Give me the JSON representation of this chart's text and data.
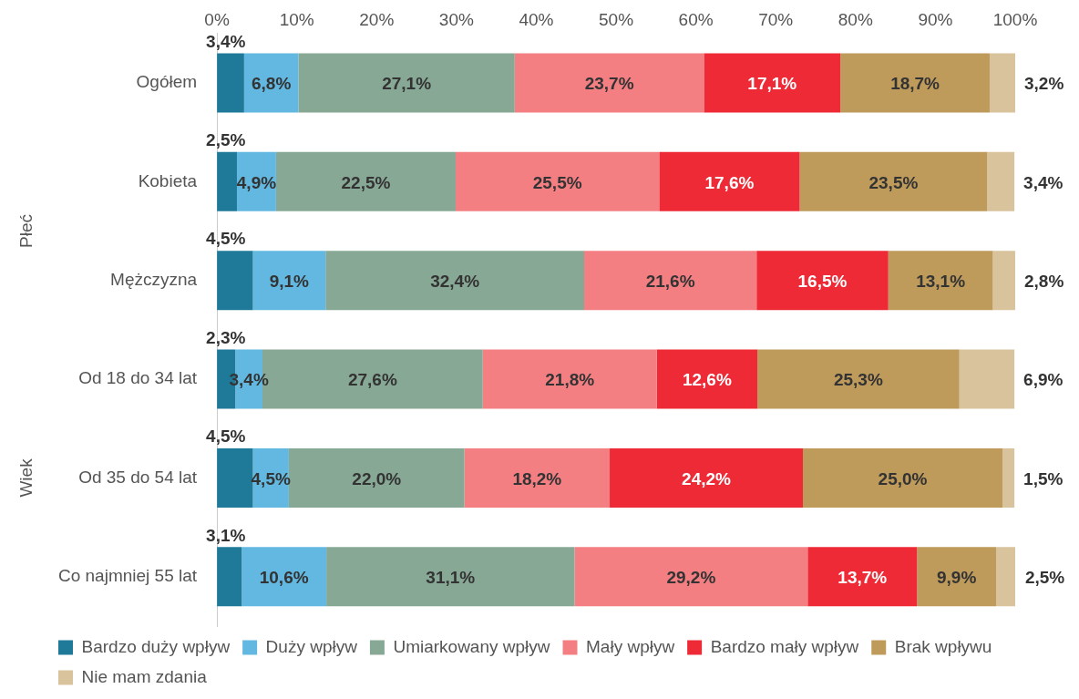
{
  "chart_data": {
    "type": "bar",
    "orientation": "horizontal",
    "stacked": true,
    "categories": [
      "Ogółem",
      "Kobieta",
      "Mężczyzna",
      "Od 18 do 34 lat",
      "Od 35 do 54 lat",
      "Co najmniej 55 lat"
    ],
    "series": [
      {
        "name": "Bardzo duży wpływ",
        "color": "#1f7a99",
        "values": [
          3.4,
          2.5,
          4.5,
          2.3,
          4.5,
          3.1
        ],
        "value_labels": [
          "3,4%",
          "2,5%",
          "4,5%",
          "2,3%",
          "4,5%",
          "3,1%"
        ]
      },
      {
        "name": "Duży wpływ",
        "color": "#62b8e0",
        "values": [
          6.8,
          4.9,
          9.1,
          3.4,
          4.5,
          10.6
        ],
        "value_labels": [
          "6,8%",
          "4,9%",
          "9,1%",
          "3,4%",
          "4,5%",
          "10,6%"
        ]
      },
      {
        "name": "Umiarkowany wpływ",
        "color": "#88a896",
        "values": [
          27.1,
          22.5,
          32.4,
          27.6,
          22.0,
          31.1
        ],
        "value_labels": [
          "27,1%",
          "22,5%",
          "32,4%",
          "27,6%",
          "22,0%",
          "31,1%"
        ]
      },
      {
        "name": "Mały wpływ",
        "color": "#f47f83",
        "values": [
          23.7,
          25.5,
          21.6,
          21.8,
          18.2,
          29.2
        ],
        "value_labels": [
          "23,7%",
          "25,5%",
          "21,6%",
          "21,8%",
          "18,2%",
          "29,2%"
        ]
      },
      {
        "name": "Bardzo mały wpływ",
        "color": "#ed2a36",
        "values": [
          17.1,
          17.6,
          16.5,
          12.6,
          24.2,
          13.7
        ],
        "value_labels": [
          "17,1%",
          "17,6%",
          "16,5%",
          "12,6%",
          "24,2%",
          "13,7%"
        ]
      },
      {
        "name": "Brak wpływu",
        "color": "#be9a5b",
        "values": [
          18.7,
          23.5,
          13.1,
          25.3,
          25.0,
          9.9
        ],
        "value_labels": [
          "18,7%",
          "23,5%",
          "13,1%",
          "25,3%",
          "25,0%",
          "9,9%"
        ]
      },
      {
        "name": "Nie mam zdania",
        "color": "#d9c39c",
        "values": [
          3.2,
          3.4,
          2.8,
          6.9,
          1.5,
          2.5
        ],
        "value_labels": [
          "3,2%",
          "3,4%",
          "2,8%",
          "6,9%",
          "1,5%",
          "2,5%"
        ]
      }
    ],
    "xlim": [
      0,
      100
    ],
    "xticks": [
      {
        "value": 0,
        "label": "0%"
      },
      {
        "value": 10,
        "label": "10%"
      },
      {
        "value": 20,
        "label": "20%"
      },
      {
        "value": 30,
        "label": "30%"
      },
      {
        "value": 40,
        "label": "40%"
      },
      {
        "value": 50,
        "label": "50%"
      },
      {
        "value": 60,
        "label": "60%"
      },
      {
        "value": 70,
        "label": "70%"
      },
      {
        "value": 80,
        "label": "80%"
      },
      {
        "value": 90,
        "label": "90%"
      },
      {
        "value": 100,
        "label": "100%"
      }
    ],
    "annotations": [
      "Płeć",
      "Wiek"
    ],
    "grid": false,
    "legend": "bottom"
  }
}
